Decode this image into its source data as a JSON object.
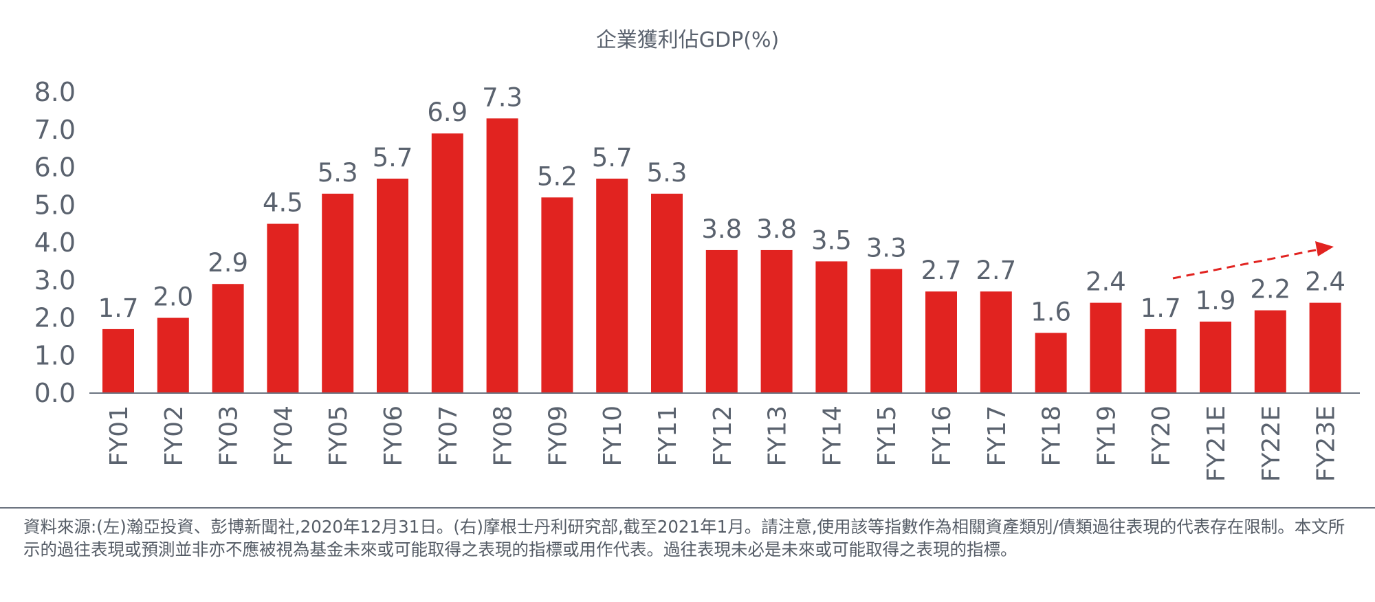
{
  "chart_data": {
    "type": "bar",
    "title": "企業獲利佔GDP(%)",
    "categories": [
      "FY01",
      "FY02",
      "FY03",
      "FY04",
      "FY05",
      "FY06",
      "FY07",
      "FY08",
      "FY09",
      "FY10",
      "FY11",
      "FY12",
      "FY13",
      "FY14",
      "FY15",
      "FY16",
      "FY17",
      "FY18",
      "FY19",
      "FY20",
      "FY21E",
      "FY22E",
      "FY23E"
    ],
    "values": [
      1.7,
      2.0,
      2.9,
      4.5,
      5.3,
      5.7,
      6.9,
      7.3,
      5.2,
      5.7,
      5.3,
      3.8,
      3.8,
      3.5,
      3.3,
      2.7,
      2.7,
      1.6,
      2.4,
      1.7,
      1.9,
      2.2,
      2.4
    ],
    "data_labels": [
      "1.7",
      "2.0",
      "2.9",
      "4.5",
      "5.3",
      "5.7",
      "6.9",
      "7.3",
      "5.2",
      "5.7",
      "5.3",
      "3.8",
      "3.8",
      "3.5",
      "3.3",
      "2.7",
      "2.7",
      "1.6",
      "2.4",
      "1.7",
      "1.9",
      "2.2",
      "2.4"
    ],
    "yticks": [
      "0.0",
      "1.0",
      "2.0",
      "3.0",
      "4.0",
      "5.0",
      "6.0",
      "7.0",
      "8.0"
    ],
    "ylim": [
      0,
      8
    ],
    "xlabel": "",
    "ylabel": "",
    "grid": false,
    "bar_color": "#e12320",
    "annotation": "dashed red arrow rising from FY20 to FY23E"
  },
  "footnote": "資料來源:(左)瀚亞投資、彭博新聞社,2020年12月31日。(右)摩根士丹利研究部,截至2021年1月。請注意,使用該等指數作為相關資產類別/債類過往表現的代表存在限制。本文所示的過往表現或預測並非亦不應被視為基金未來或可能取得之表現的指標或用作代表。過往表現未必是未來或可能取得之表現的指標。"
}
